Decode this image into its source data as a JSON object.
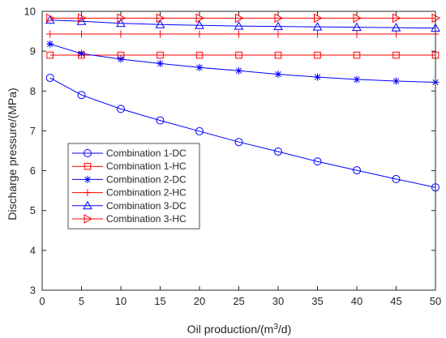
{
  "chart_data": {
    "type": "line",
    "title": "",
    "xlabel": "Oil production/(m",
    "xlabel_sup": "3",
    "xlabel_tail": "/d)",
    "ylabel": "Discharge pressure/(MPa)",
    "xlim": [
      0,
      50
    ],
    "ylim": [
      3,
      10
    ],
    "x_ticks": [
      "0",
      "5",
      "10",
      "15",
      "20",
      "25",
      "30",
      "35",
      "40",
      "45",
      "50"
    ],
    "y_ticks": [
      "3",
      "4",
      "5",
      "6",
      "7",
      "8",
      "9",
      "10"
    ],
    "grid": false,
    "legend_position": "center-left",
    "x": [
      1,
      5,
      10,
      15,
      20,
      25,
      30,
      35,
      40,
      45,
      50
    ],
    "series": [
      {
        "name": "Combination 1-DC",
        "color": "#0000ff",
        "marker": "circle",
        "values": [
          8.33,
          7.9,
          7.55,
          7.26,
          6.99,
          6.72,
          6.48,
          6.23,
          6.01,
          5.79,
          5.58
        ]
      },
      {
        "name": "Combination 1-HC",
        "color": "#ff0000",
        "marker": "square",
        "values": [
          8.9,
          8.9,
          8.9,
          8.9,
          8.9,
          8.9,
          8.9,
          8.9,
          8.9,
          8.9,
          8.9
        ]
      },
      {
        "name": "Combination 2-DC",
        "color": "#0000ff",
        "marker": "star",
        "values": [
          9.18,
          8.94,
          8.8,
          8.69,
          8.59,
          8.51,
          8.42,
          8.35,
          8.29,
          8.25,
          8.22
        ]
      },
      {
        "name": "Combination 2-HC",
        "color": "#ff0000",
        "marker": "plus",
        "values": [
          9.43,
          9.43,
          9.43,
          9.43,
          9.43,
          9.43,
          9.43,
          9.43,
          9.43,
          9.43,
          9.43
        ]
      },
      {
        "name": "Combination 3-DC",
        "color": "#0000ff",
        "marker": "triangle-up",
        "values": [
          9.78,
          9.75,
          9.7,
          9.67,
          9.65,
          9.63,
          9.62,
          9.61,
          9.6,
          9.59,
          9.58
        ]
      },
      {
        "name": "Combination 3-HC",
        "color": "#ff0000",
        "marker": "triangle-right",
        "values": [
          9.83,
          9.83,
          9.83,
          9.83,
          9.83,
          9.83,
          9.83,
          9.83,
          9.83,
          9.83,
          9.83
        ]
      }
    ]
  }
}
